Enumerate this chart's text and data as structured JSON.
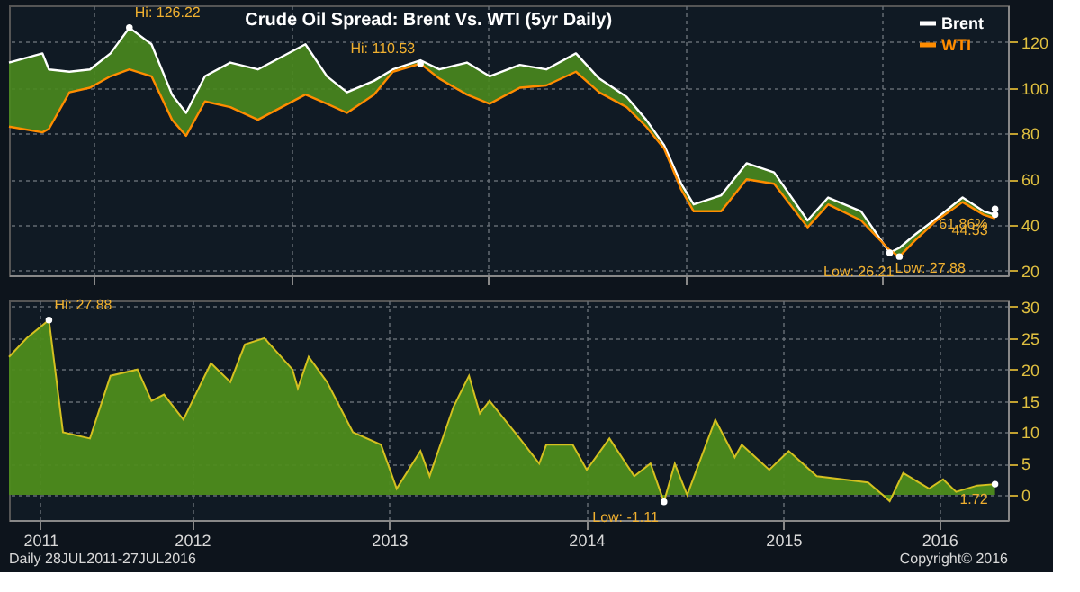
{
  "chart_data": [
    {
      "type": "line",
      "title": "Crude Oil Spread: Brent Vs. WTI (5yr Daily)",
      "legend": "top right",
      "grid": true,
      "line_style": "solid",
      "tick_labels": "y",
      "x": [
        "2011-07-28",
        "2011-09-28",
        "2011-10-10",
        "2011-11-17",
        "2011-12-25",
        "2012-02-01",
        "2012-03-07",
        "2012-04-17",
        "2012-05-25",
        "2012-06-20",
        "2012-07-25",
        "2012-09-10",
        "2012-10-31",
        "2013-01-27",
        "2013-03-08",
        "2013-04-14",
        "2013-06-03",
        "2013-07-08",
        "2013-08-28",
        "2013-10-02",
        "2013-11-22",
        "2014-01-03",
        "2014-02-28",
        "2014-04-18",
        "2014-06-12",
        "2014-07-25",
        "2014-09-14",
        "2014-10-20",
        "2014-11-22",
        "2014-12-24",
        "2015-01-16",
        "2015-03-08",
        "2015-04-24",
        "2015-06-14",
        "2015-08-15",
        "2015-09-22",
        "2015-11-22",
        "2016-01-14",
        "2016-02-01",
        "2016-03-02",
        "2016-04-10",
        "2016-05-28",
        "2016-07-06",
        "2016-07-27"
      ],
      "series": [
        {
          "name": "Brent",
          "color": "#ffffff",
          "values": [
            111,
            115,
            108,
            107,
            108,
            115,
            126.22,
            119,
            97,
            89,
            105,
            111,
            108,
            119,
            105,
            98,
            103,
            108,
            112,
            108,
            111,
            105,
            110,
            108,
            115,
            104,
            96,
            86,
            75,
            58,
            49,
            53,
            67,
            63,
            42,
            52,
            46,
            27.88,
            30,
            36,
            43,
            52,
            46,
            44.53
          ],
          "lower": [
            83,
            80.5,
            82,
            98,
            100,
            105,
            108,
            105,
            86,
            79,
            94,
            91.5,
            86,
            97,
            93,
            89,
            97,
            107,
            110.53,
            104,
            97,
            93,
            100,
            101,
            107,
            98,
            91.5,
            83,
            73.5,
            55.5,
            46,
            46,
            60,
            58,
            39,
            49,
            42,
            29,
            26.21,
            33.5,
            42,
            50,
            44.5,
            42.81
          ],
          "upper": [
            111,
            115,
            108,
            107,
            108,
            115,
            126.22,
            119,
            97,
            89,
            105,
            111,
            108,
            119,
            105,
            98,
            103,
            108,
            112,
            108,
            111,
            105,
            110,
            108,
            115,
            104,
            96,
            86,
            75,
            58,
            49,
            53,
            67,
            63,
            42,
            52,
            46,
            27.88,
            30,
            36,
            43,
            52,
            46,
            44.53
          ]
        },
        {
          "name": "WTI",
          "color": "#ff8c00",
          "values": [
            83,
            80.5,
            82,
            98,
            100,
            105,
            108,
            105,
            86,
            79,
            94,
            91.5,
            86,
            97,
            93,
            89,
            97,
            107,
            110.53,
            104,
            97,
            93,
            100,
            101,
            107,
            98,
            91.5,
            83,
            73.5,
            55.5,
            46,
            46,
            60,
            58,
            39,
            49,
            42,
            29,
            26.21,
            33.5,
            42,
            50,
            44.5,
            42.81
          ]
        }
      ],
      "xlim": [
        "2011-07-28",
        "2016-08-20"
      ],
      "ylim": [
        18,
        136
      ],
      "yticks": [
        20,
        40,
        60,
        80,
        100,
        120
      ],
      "annotations": [
        {
          "text": "Hi: 126.22",
          "x": "2012-03-07",
          "y": 126.22
        },
        {
          "text": "Hi: 110.53",
          "x": "2013-08-28",
          "y": 110.53
        },
        {
          "text": "Low: 27.88",
          "x": "2016-01-14",
          "y": 27.88
        },
        {
          "text": "Low: 26.21",
          "x": "2016-02-01",
          "y": 26.21
        },
        {
          "text": "61.86%",
          "x": "2016-07-27",
          "y": 47
        },
        {
          "text": "44.53",
          "x": "2016-07-27",
          "y": 44.53
        }
      ]
    },
    {
      "type": "area",
      "grid": true,
      "x": [
        "2011-07-28",
        "2011-08-30",
        "2011-10-10",
        "2011-11-05",
        "2011-12-25",
        "2012-02-01",
        "2012-03-22",
        "2012-04-17",
        "2012-05-10",
        "2012-06-15",
        "2012-08-05",
        "2012-09-10",
        "2012-10-07",
        "2012-11-12",
        "2013-01-03",
        "2013-01-13",
        "2013-02-02",
        "2013-03-08",
        "2013-04-25",
        "2013-06-16",
        "2013-07-15",
        "2013-08-28",
        "2013-09-14",
        "2013-10-28",
        "2013-11-26",
        "2013-12-16",
        "2014-01-03",
        "2014-02-28",
        "2014-04-05",
        "2014-04-18",
        "2014-06-06",
        "2014-07-02",
        "2014-08-13",
        "2014-09-28",
        "2014-10-28",
        "2014-11-22",
        "2014-12-12",
        "2015-01-04",
        "2015-02-25",
        "2015-04-02",
        "2015-04-15",
        "2015-06-05",
        "2015-07-11",
        "2015-09-01",
        "2015-12-05",
        "2016-01-01",
        "2016-01-14",
        "2016-02-08",
        "2016-03-27",
        "2016-04-22",
        "2016-05-16",
        "2016-06-24",
        "2016-07-27"
      ],
      "series": [
        {
          "color": "#4e8c1c",
          "values": [
            22,
            25,
            27.88,
            10,
            9,
            19,
            20,
            15,
            16,
            12,
            21,
            18,
            24,
            25,
            20,
            17,
            22,
            18,
            10,
            8,
            1,
            7,
            3,
            14,
            19,
            13,
            15,
            9,
            5,
            8,
            8,
            4,
            9,
            3,
            5,
            -1.11,
            5,
            0,
            12,
            6,
            8,
            4,
            7,
            3,
            2,
            0,
            -1,
            3.5,
            1,
            2.5,
            0.5,
            1.5,
            1.72
          ]
        }
      ],
      "xlim": [
        "2011-07-28",
        "2016-08-20"
      ],
      "ylim": [
        -4,
        31
      ],
      "yticks": [
        0,
        5,
        10,
        15,
        20,
        25,
        30
      ],
      "xticks": [
        {
          "value": "2011-09-24",
          "label": "2011"
        },
        {
          "value": "2012-07-01",
          "label": "2012"
        },
        {
          "value": "2013-07-01",
          "label": "2013"
        },
        {
          "value": "2014-07-01",
          "label": "2014"
        },
        {
          "value": "2015-07-01",
          "label": "2015"
        },
        {
          "value": "2016-04-15",
          "label": "2016"
        }
      ],
      "annotations": [
        {
          "text": "Hi: 27.88",
          "x": "2011-10-10",
          "y": 27.88
        },
        {
          "text": "Low: -1.11",
          "x": "2014-11-22",
          "y": -1.11
        },
        {
          "text": "1.72",
          "x": "2016-07-27",
          "y": 1.72
        },
        "Daily 28JUL2011-27JUL2016",
        "Copyright© 2016"
      ]
    }
  ]
}
